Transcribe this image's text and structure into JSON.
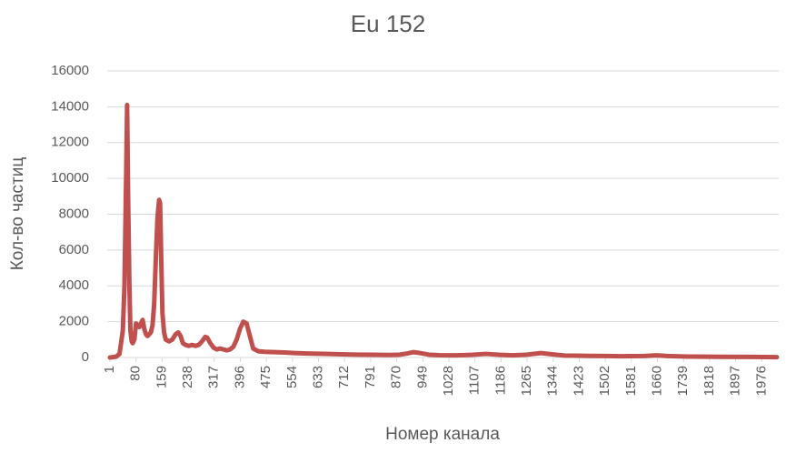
{
  "chart_data": {
    "type": "line",
    "title": "Eu 152",
    "x_label": "Номер канала",
    "y_label": "Кол-во частиц",
    "series": [
      {
        "name": "Eu 152",
        "color": "#c0504d",
        "x": [
          1,
          10,
          20,
          30,
          40,
          45,
          50,
          53,
          56,
          60,
          63,
          67,
          70,
          75,
          80,
          85,
          90,
          95,
          100,
          105,
          110,
          115,
          120,
          125,
          130,
          135,
          140,
          145,
          150,
          153,
          157,
          160,
          165,
          170,
          180,
          190,
          200,
          208,
          215,
          222,
          230,
          240,
          250,
          260,
          270,
          280,
          290,
          296,
          305,
          315,
          325,
          335,
          345,
          355,
          365,
          375,
          385,
          395,
          405,
          415,
          425,
          435,
          450,
          470,
          500,
          530,
          560,
          600,
          650,
          700,
          750,
          800,
          850,
          880,
          900,
          921,
          940,
          970,
          1000,
          1050,
          1100,
          1141,
          1180,
          1220,
          1260,
          1307,
          1340,
          1380,
          1450,
          1500,
          1550,
          1620,
          1657,
          1690,
          1750,
          1850,
          1950,
          2022
        ],
        "values": [
          0,
          20,
          50,
          200,
          1500,
          4000,
          10000,
          14100,
          9000,
          4000,
          1500,
          900,
          800,
          1000,
          1900,
          1800,
          1700,
          1900,
          2100,
          1600,
          1300,
          1200,
          1300,
          1400,
          1800,
          3000,
          5500,
          7800,
          8800,
          8600,
          5000,
          2500,
          1400,
          1000,
          900,
          1000,
          1300,
          1400,
          1200,
          800,
          700,
          650,
          700,
          650,
          700,
          900,
          1150,
          1100,
          800,
          550,
          450,
          500,
          450,
          400,
          450,
          600,
          1000,
          1600,
          2000,
          1900,
          1200,
          500,
          350,
          320,
          300,
          280,
          250,
          220,
          200,
          180,
          160,
          150,
          140,
          160,
          220,
          300,
          250,
          150,
          130,
          120,
          150,
          200,
          150,
          120,
          150,
          250,
          180,
          110,
          90,
          80,
          70,
          80,
          120,
          80,
          50,
          40,
          30,
          20
        ]
      }
    ],
    "xlim": [
      1,
      2022
    ],
    "xticks": [
      1,
      80,
      159,
      238,
      317,
      396,
      475,
      554,
      633,
      712,
      791,
      870,
      949,
      1028,
      1107,
      1186,
      1265,
      1344,
      1423,
      1502,
      1581,
      1660,
      1739,
      1818,
      1897,
      1976
    ],
    "ylim": [
      0,
      16000
    ],
    "yticks": [
      0,
      2000,
      4000,
      6000,
      8000,
      10000,
      12000,
      14000,
      16000
    ],
    "grid": true
  }
}
